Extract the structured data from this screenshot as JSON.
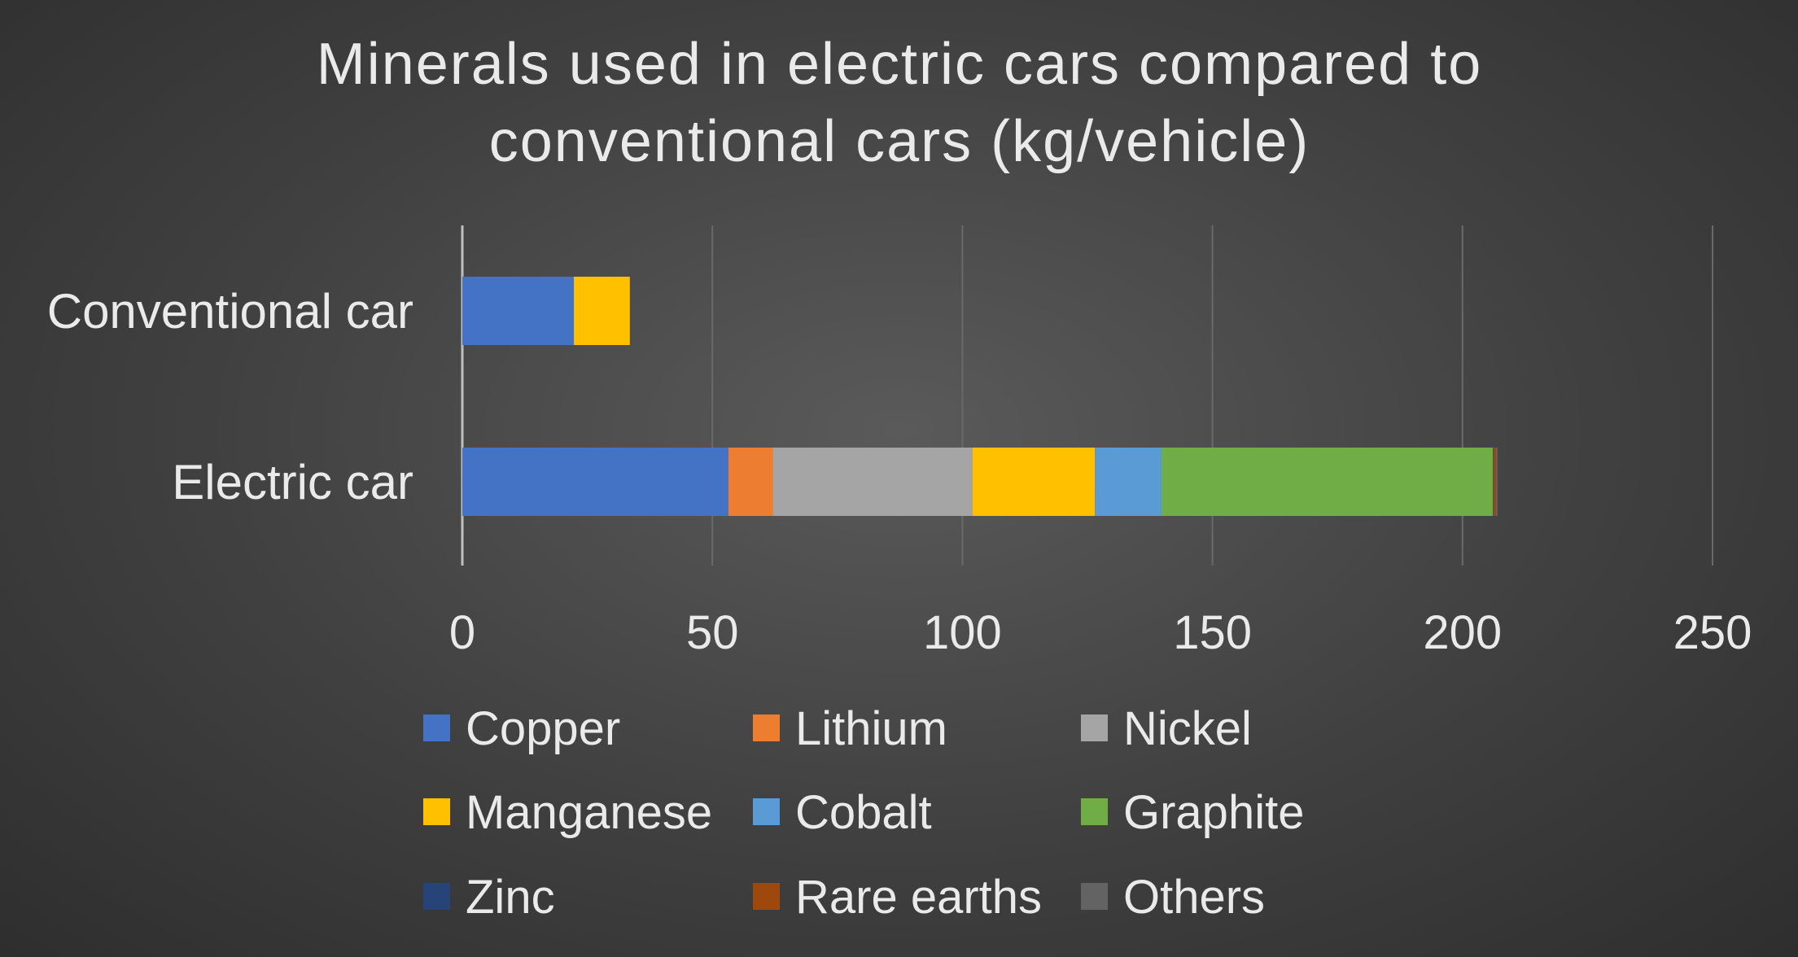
{
  "chart_data": {
    "type": "bar",
    "orientation": "horizontal",
    "stacked": true,
    "title": "Minerals used in electric cars compared to conventional cars (kg/vehicle)",
    "title_lines": [
      "Minerals used in electric cars compared to",
      "conventional cars (kg/vehicle)"
    ],
    "categories": [
      "Conventional car",
      "Electric car"
    ],
    "xlim": [
      0,
      250
    ],
    "xticks": [
      0,
      50,
      100,
      150,
      200,
      250
    ],
    "grid": true,
    "legend_position": "bottom",
    "series": [
      {
        "name": "Copper",
        "color": "#4472c4",
        "values": [
          22.3,
          53.2
        ]
      },
      {
        "name": "Lithium",
        "color": "#ed7d31",
        "values": [
          0,
          8.9
        ]
      },
      {
        "name": "Nickel",
        "color": "#a5a5a5",
        "values": [
          0,
          39.9
        ]
      },
      {
        "name": "Manganese",
        "color": "#ffc000",
        "values": [
          11.2,
          24.5
        ]
      },
      {
        "name": "Cobalt",
        "color": "#5b9bd5",
        "values": [
          0,
          13.3
        ]
      },
      {
        "name": "Graphite",
        "color": "#70ad47",
        "values": [
          0,
          66.3
        ]
      },
      {
        "name": "Zinc",
        "color": "#264478",
        "values": [
          0,
          0.1
        ]
      },
      {
        "name": "Rare earths",
        "color": "#9e480e",
        "values": [
          0,
          0.5
        ]
      },
      {
        "name": "Others",
        "color": "#636363",
        "values": [
          0,
          0.3
        ]
      }
    ]
  }
}
